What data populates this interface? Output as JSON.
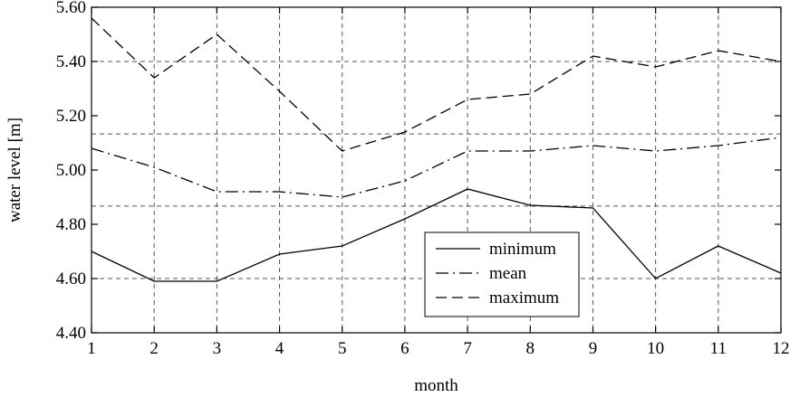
{
  "chart_data": {
    "type": "line",
    "xlabel": "month",
    "ylabel": "water level [m]",
    "x": [
      1,
      2,
      3,
      4,
      5,
      6,
      7,
      8,
      9,
      10,
      11,
      12
    ],
    "xlim": [
      1,
      12
    ],
    "ylim": [
      4.4,
      5.6
    ],
    "yticks": [
      "4.40",
      "4.60",
      "4.80",
      "5.00",
      "5.20",
      "5.40",
      "5.60"
    ],
    "xticks": [
      "1",
      "2",
      "3",
      "4",
      "5",
      "6",
      "7",
      "8",
      "9",
      "10",
      "11",
      "12"
    ],
    "reference_lines": [
      4.6,
      4.867,
      5.133,
      5.4
    ],
    "grid": true,
    "legend_position": "bottom-center",
    "series": [
      {
        "name": "minimum",
        "line_style": "solid",
        "values": [
          4.7,
          4.59,
          4.59,
          4.69,
          4.72,
          4.82,
          4.93,
          4.87,
          4.86,
          4.6,
          4.72,
          4.62
        ]
      },
      {
        "name": "mean",
        "line_style": "dash-dot",
        "values": [
          5.08,
          5.01,
          4.92,
          4.92,
          4.9,
          4.96,
          5.07,
          5.07,
          5.09,
          5.07,
          5.09,
          5.12
        ]
      },
      {
        "name": "maximum",
        "line_style": "dashed",
        "values": [
          5.56,
          5.34,
          5.5,
          5.29,
          5.07,
          5.14,
          5.26,
          5.28,
          5.42,
          5.38,
          5.44,
          5.4
        ]
      }
    ]
  }
}
